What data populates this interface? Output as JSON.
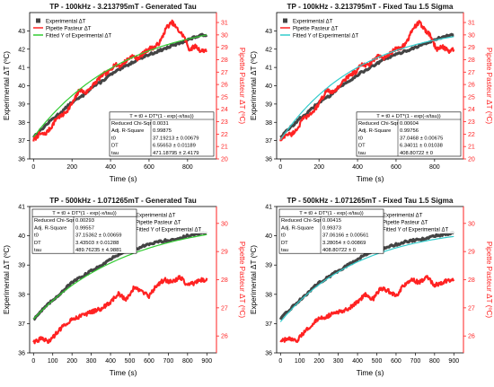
{
  "chart_data": [
    {
      "type": "line",
      "title": "TP - 100kHz - 3.213795mT - Generated Tau",
      "xlabel": "Time (s)",
      "ylabel": "Experimental ΔT (ºC)",
      "y2label": "Pipette Pasteur ΔT (ºC)",
      "xlim": [
        -20,
        950
      ],
      "ylim": [
        36,
        44
      ],
      "y2lim": [
        20,
        31.8
      ],
      "xticks": [
        0,
        200,
        400,
        600,
        800
      ],
      "yticks": [
        36,
        37,
        38,
        39,
        40,
        41,
        42,
        43
      ],
      "y2ticks": [
        20,
        21,
        22,
        23,
        24,
        25,
        26,
        27,
        28,
        29,
        30,
        31
      ],
      "legend_position": "top-left",
      "legend": [
        "Experimental ΔT",
        "Pipette Pasteur ΔT",
        "Fitted Y of Experimental ΔT"
      ],
      "fit_color": "#33cc33",
      "fit_table": {
        "position": "bottom-right",
        "equation": "T = t0 + DT*(1 - exp(-x/tau))",
        "rows": [
          [
            "Reduced Chi-Sqr",
            "0.0031"
          ],
          [
            "Adj. R-Square",
            "0.99875"
          ],
          [
            "t0",
            "37.19213 ± 0.00679"
          ],
          [
            "DT",
            "6.55653 ± 0.01189"
          ],
          [
            "tau",
            "471.18795 ± 2.4179"
          ]
        ]
      },
      "fit": {
        "t0": 37.19213,
        "DT": 6.55653,
        "tau": 471.18795
      },
      "series": [
        {
          "name": "Experimental ΔT",
          "color": "#444444",
          "axis": "left",
          "x": [
            0,
            50,
            100,
            150,
            200,
            250,
            300,
            350,
            400,
            450,
            500,
            550,
            600,
            650,
            700,
            750,
            800,
            850,
            900
          ],
          "values": [
            37.2,
            37.7,
            38.2,
            38.6,
            39.1,
            39.4,
            39.9,
            40.2,
            40.6,
            40.9,
            41.2,
            41.5,
            41.7,
            41.9,
            42.1,
            42.3,
            42.5,
            42.7,
            42.8
          ]
        },
        {
          "name": "Pipette Pasteur ΔT",
          "color": "#ff2222",
          "axis": "right",
          "x": [
            0,
            30,
            60,
            90,
            120,
            150,
            180,
            210,
            240,
            270,
            300,
            330,
            360,
            390,
            420,
            450,
            480,
            510,
            540,
            570,
            600,
            630,
            660,
            690,
            720,
            750,
            780,
            810,
            840,
            870,
            900
          ],
          "values": [
            21.5,
            22.0,
            22.0,
            22.5,
            23.3,
            23.5,
            24.0,
            24.7,
            25.6,
            25.3,
            25.8,
            26.3,
            26.8,
            27.0,
            27.6,
            27.5,
            27.9,
            28.3,
            28.1,
            28.5,
            28.9,
            29.0,
            29.5,
            30.6,
            31.0,
            30.4,
            29.9,
            28.8,
            29.1,
            28.7,
            28.8
          ]
        }
      ]
    },
    {
      "type": "line",
      "title": "TP - 100kHz - 3.213795mT - Fixed Tau 1.5 Sigma",
      "xlabel": "Time (s)",
      "ylabel": "Experimental ΔT (ºC)",
      "y2label": "Pipette Pasteur ΔT (ºC)",
      "xlim": [
        -20,
        950
      ],
      "ylim": [
        36,
        44
      ],
      "y2lim": [
        20,
        31.8
      ],
      "xticks": [
        0,
        200,
        400,
        600,
        800
      ],
      "yticks": [
        36,
        37,
        38,
        39,
        40,
        41,
        42,
        43
      ],
      "y2ticks": [
        20,
        21,
        22,
        23,
        24,
        25,
        26,
        27,
        28,
        29,
        30,
        31
      ],
      "legend_position": "top-left",
      "legend": [
        "Experimental ΔT",
        "Pipette Pasteur ΔT",
        "Fitted Y of Experimental ΔT"
      ],
      "fit_color": "#33cccc",
      "fit_table": {
        "position": "bottom-right",
        "equation": "T = t0 + DT*(1 - exp(-x/tau))",
        "rows": [
          [
            "Reduced Chi-Sqr",
            "0.00604"
          ],
          [
            "Adj. R-Square",
            "0.99756"
          ],
          [
            "t0",
            "37.0468 ± 0.00675"
          ],
          [
            "DT",
            "6.34011 ± 0.01038"
          ],
          [
            "tau",
            "408.80722 ± 0"
          ]
        ]
      },
      "fit": {
        "t0": 37.0468,
        "DT": 6.34011,
        "tau": 408.80722
      },
      "series": [
        {
          "name": "Experimental ΔT",
          "color": "#444444",
          "axis": "left",
          "x": [
            0,
            50,
            100,
            150,
            200,
            250,
            300,
            350,
            400,
            450,
            500,
            550,
            600,
            650,
            700,
            750,
            800,
            850,
            900
          ],
          "values": [
            37.2,
            37.7,
            38.2,
            38.6,
            39.1,
            39.4,
            39.9,
            40.2,
            40.6,
            40.9,
            41.2,
            41.5,
            41.7,
            41.9,
            42.1,
            42.3,
            42.5,
            42.7,
            42.8
          ]
        },
        {
          "name": "Pipette Pasteur ΔT",
          "color": "#ff2222",
          "axis": "right",
          "x": [
            0,
            30,
            60,
            90,
            120,
            150,
            180,
            210,
            240,
            270,
            300,
            330,
            360,
            390,
            420,
            450,
            480,
            510,
            540,
            570,
            600,
            630,
            660,
            690,
            720,
            750,
            780,
            810,
            840,
            870,
            900
          ],
          "values": [
            21.5,
            22.0,
            22.0,
            22.5,
            23.3,
            23.5,
            24.0,
            24.7,
            25.6,
            25.3,
            25.8,
            26.3,
            26.8,
            27.0,
            27.6,
            27.5,
            27.9,
            28.3,
            28.1,
            28.5,
            28.9,
            29.0,
            29.5,
            30.6,
            31.0,
            30.4,
            29.9,
            28.8,
            29.1,
            28.7,
            28.8
          ]
        }
      ]
    },
    {
      "type": "line",
      "title": "TP - 500kHz - 1.071265mT - Generated Tau",
      "xlabel": "Time (s)",
      "ylabel": "Experimental ΔT (ºC)",
      "y2label": "Pipette Pasteur ΔT (ºC)",
      "xlim": [
        -20,
        950
      ],
      "ylim": [
        36,
        41
      ],
      "y2lim": [
        25.4,
        30.6
      ],
      "xticks": [
        0,
        100,
        200,
        300,
        400,
        500,
        600,
        700,
        800,
        900
      ],
      "yticks": [
        36,
        37,
        38,
        39,
        40,
        41
      ],
      "y2ticks": [
        26,
        27,
        28,
        29,
        30
      ],
      "legend_position": "top-right",
      "legend": [
        "Experimental ΔT",
        "Pipette Pasteur ΔT",
        "Fitted Y of Experimental ΔT"
      ],
      "fit_color": "#33cc33",
      "fit_table": {
        "position": "top-left",
        "equation": "T = t0 + DT*(1 - exp(-x/tau))",
        "rows": [
          [
            "Reduced Chi-Sqr",
            "0.00293"
          ],
          [
            "Adj. R-Square",
            "0.99557"
          ],
          [
            "t0",
            "37.15362 ± 0.00659"
          ],
          [
            "DT",
            "3.43503 ± 0.01288"
          ],
          [
            "tau",
            "489.76235 ± 4.9881"
          ]
        ]
      },
      "fit": {
        "t0": 37.15362,
        "DT": 3.43503,
        "tau": 489.76235
      },
      "series": [
        {
          "name": "Experimental ΔT",
          "color": "#444444",
          "axis": "left",
          "x": [
            0,
            50,
            100,
            150,
            200,
            250,
            300,
            350,
            400,
            450,
            500,
            550,
            600,
            650,
            700,
            750,
            800,
            850,
            900
          ],
          "values": [
            37.15,
            37.5,
            37.8,
            38.1,
            38.4,
            38.6,
            38.8,
            39.0,
            39.2,
            39.4,
            39.5,
            39.6,
            39.7,
            39.8,
            39.85,
            39.9,
            40.0,
            40.05,
            40.1
          ]
        },
        {
          "name": "Pipette Pasteur ΔT",
          "color": "#ff2222",
          "axis": "right",
          "x": [
            0,
            40,
            80,
            120,
            160,
            200,
            240,
            280,
            320,
            360,
            400,
            440,
            480,
            520,
            560,
            600,
            640,
            680,
            720,
            760,
            800,
            840,
            880,
            900
          ],
          "values": [
            25.8,
            25.9,
            25.8,
            26.1,
            26.4,
            26.6,
            26.7,
            26.8,
            26.9,
            27.0,
            27.2,
            27.5,
            27.3,
            27.7,
            27.6,
            27.4,
            27.8,
            28.0,
            27.9,
            28.1,
            27.8,
            27.9,
            28.0,
            28.0
          ]
        }
      ]
    },
    {
      "type": "line",
      "title": "TP - 500kHz - 1.071265mT - Fixed Tau 1.5 Sigma",
      "xlabel": "Time (s)",
      "ylabel": "Experimental ΔT (ºC)",
      "y2label": "Pipette Pasteur ΔT (ºC)",
      "xlim": [
        -20,
        950
      ],
      "ylim": [
        36,
        41
      ],
      "y2lim": [
        25.4,
        30.6
      ],
      "xticks": [
        0,
        100,
        200,
        300,
        400,
        500,
        600,
        700,
        800,
        900
      ],
      "yticks": [
        36,
        37,
        38,
        39,
        40,
        41
      ],
      "y2ticks": [
        26,
        27,
        28,
        29,
        30
      ],
      "legend_position": "top-right",
      "legend": [
        "Experimental ΔT",
        "Pipette Pasteur ΔT",
        "Fitted Y of Experimental ΔT"
      ],
      "fit_color": "#33cccc",
      "fit_table": {
        "position": "top-left",
        "equation": "T = t0 + DT*(1 - exp(-x/tau))",
        "rows": [
          [
            "Reduced Chi-Sqr",
            "0.00415"
          ],
          [
            "Adj. R-Square",
            "0.99373"
          ],
          [
            "t0",
            "37.06166 ± 0.00561"
          ],
          [
            "DT",
            "3.28054 ± 0.00869"
          ],
          [
            "tau",
            "408.80722 ± 0"
          ]
        ]
      },
      "fit": {
        "t0": 37.06166,
        "DT": 3.28054,
        "tau": 408.80722
      },
      "series": [
        {
          "name": "Experimental ΔT",
          "color": "#444444",
          "axis": "left",
          "x": [
            0,
            50,
            100,
            150,
            200,
            250,
            300,
            350,
            400,
            450,
            500,
            550,
            600,
            650,
            700,
            750,
            800,
            850,
            900
          ],
          "values": [
            37.15,
            37.5,
            37.8,
            38.1,
            38.4,
            38.6,
            38.8,
            39.0,
            39.2,
            39.4,
            39.5,
            39.6,
            39.7,
            39.8,
            39.85,
            39.9,
            40.0,
            40.05,
            40.1
          ]
        },
        {
          "name": "Pipette Pasteur ΔT",
          "color": "#ff2222",
          "axis": "right",
          "x": [
            0,
            40,
            80,
            120,
            160,
            200,
            240,
            280,
            320,
            360,
            400,
            440,
            480,
            520,
            560,
            600,
            640,
            680,
            720,
            760,
            800,
            840,
            880,
            900
          ],
          "values": [
            25.8,
            25.9,
            25.8,
            26.1,
            26.4,
            26.6,
            26.7,
            26.8,
            26.9,
            27.0,
            27.2,
            27.5,
            27.3,
            27.7,
            27.6,
            27.4,
            27.8,
            28.0,
            27.9,
            28.1,
            27.8,
            27.9,
            28.0,
            28.0
          ]
        }
      ]
    }
  ]
}
